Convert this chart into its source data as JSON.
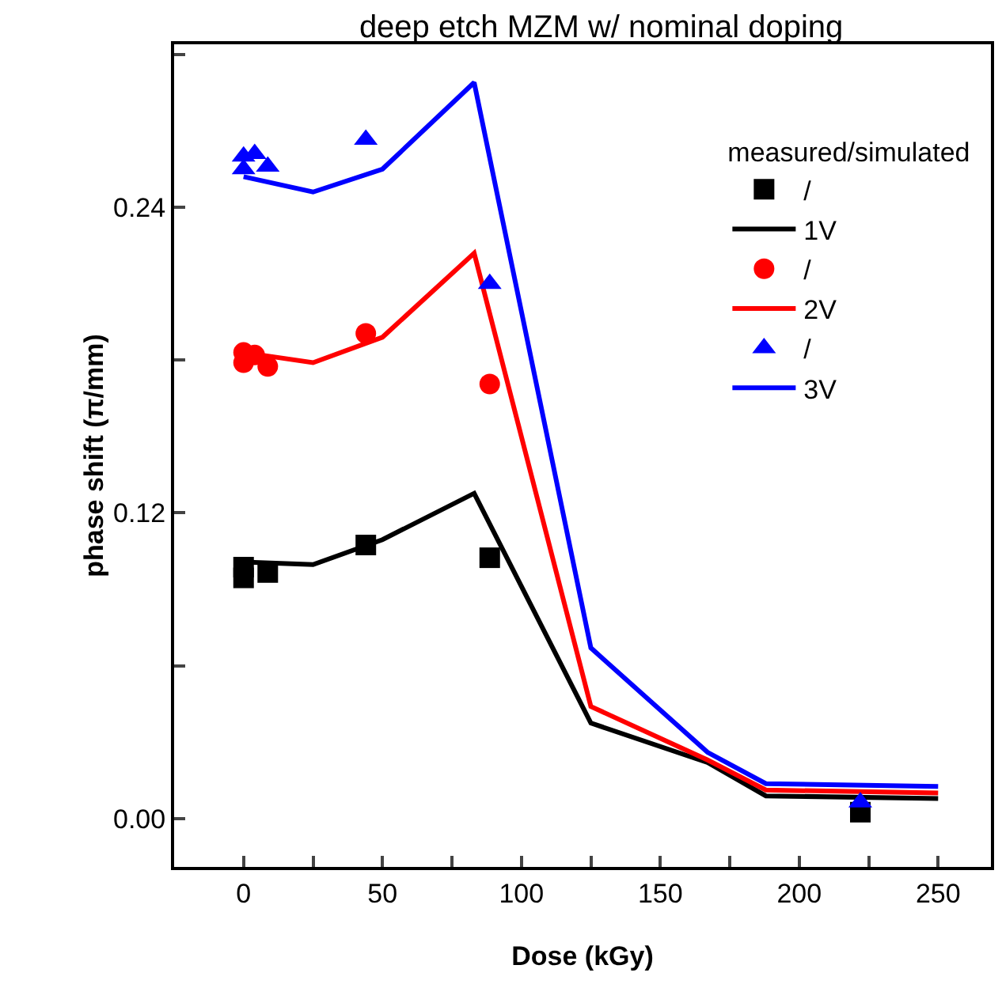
{
  "chart_data": {
    "type": "line",
    "title": "deep etch MZM w/ nominal doping",
    "xlabel": "Dose (kGy)",
    "ylabel": "phase shift (π/mm)",
    "legend_title": "measured/simulated",
    "legend": "top right",
    "grid": false,
    "xlim": [
      -25,
      269
    ],
    "xticks": [
      0,
      {
        "value": 25,
        "label": null
      },
      50,
      {
        "value": 75,
        "label": null
      },
      100,
      {
        "value": 125,
        "label": null
      },
      150,
      {
        "value": 175,
        "label": null
      },
      200,
      {
        "value": 225,
        "label": null
      },
      250
    ],
    "ylim": [
      -0.019,
      0.304
    ],
    "yticks": [
      {
        "value": 0,
        "label": "0.00"
      },
      {
        "value": 0.06,
        "label": null
      },
      {
        "value": 0.12,
        "label": "0.12"
      },
      {
        "value": 0.18,
        "label": null
      },
      {
        "value": 0.24,
        "label": "0.24"
      },
      {
        "value": 0.3,
        "label": null
      }
    ],
    "series": [
      {
        "name": "/",
        "type": "scatter",
        "marker": "square",
        "color": "#000000",
        "x": [
          0,
          0,
          8.7,
          44,
          88.6,
          222
        ],
        "values": [
          0.0987,
          0.0945,
          0.0966,
          0.1074,
          0.1024,
          0.0025
        ]
      },
      {
        "name": "1V",
        "marker": "none",
        "color": "#000000",
        "x": [
          0,
          25,
          50,
          83,
          125,
          167,
          188,
          250
        ],
        "values": [
          0.1007,
          0.0997,
          0.1095,
          0.1277,
          0.0375,
          0.022,
          0.0089,
          0.0079
        ]
      },
      {
        "name": "/",
        "type": "scatter",
        "marker": "circle",
        "color": "#ff0000",
        "x": [
          0,
          0,
          4,
          8.7,
          44,
          88.6
        ],
        "values": [
          0.183,
          0.179,
          0.182,
          0.1775,
          0.1905,
          0.1706
        ]
      },
      {
        "name": "2V",
        "marker": "none",
        "color": "#ff0000",
        "x": [
          0,
          25,
          50,
          83,
          125,
          167,
          188,
          250
        ],
        "values": [
          0.183,
          0.179,
          0.189,
          0.222,
          0.044,
          0.023,
          0.0112,
          0.01
        ]
      },
      {
        "name": "/",
        "type": "scatter",
        "marker": "triangle",
        "color": "#0000ff",
        "x": [
          0,
          0,
          4,
          8.7,
          44,
          88.6,
          222
        ],
        "values": [
          0.255,
          0.26,
          0.261,
          0.256,
          0.2666,
          0.21,
          0.0064
        ]
      },
      {
        "name": "3V",
        "marker": "none",
        "color": "#0000ff",
        "x": [
          0,
          25,
          50,
          83,
          125,
          167,
          188,
          250
        ],
        "values": [
          0.252,
          0.246,
          0.255,
          0.289,
          0.067,
          0.026,
          0.0137,
          0.0126
        ]
      }
    ]
  }
}
